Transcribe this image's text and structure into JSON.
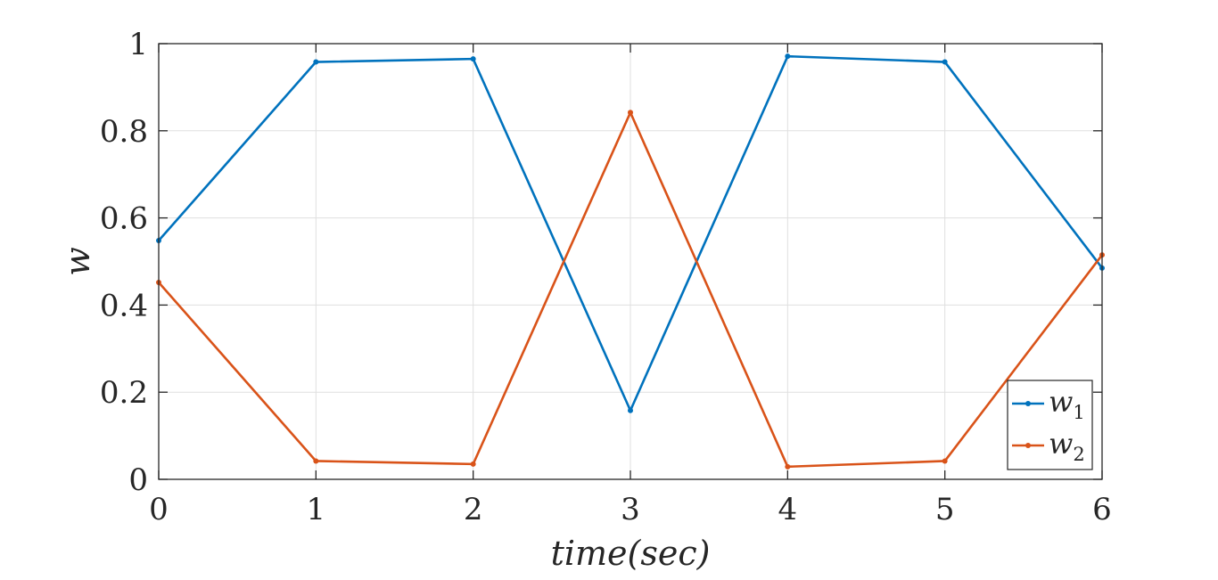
{
  "chart_data": {
    "type": "line",
    "title": "",
    "xlabel": "time(sec)",
    "ylabel": "w",
    "xlim": [
      0,
      6
    ],
    "ylim": [
      0,
      1
    ],
    "xticks": [
      0,
      1,
      2,
      3,
      4,
      5,
      6
    ],
    "yticks": [
      0,
      0.2,
      0.4,
      0.6,
      0.8,
      1
    ],
    "xtick_labels": [
      "0",
      "1",
      "2",
      "3",
      "4",
      "5",
      "6"
    ],
    "ytick_labels": [
      "0",
      "0.2",
      "0.4",
      "0.6",
      "0.8",
      "1"
    ],
    "grid": true,
    "legend_position": "bottom-right",
    "x": [
      0,
      1,
      2,
      3,
      4,
      5,
      6
    ],
    "series": [
      {
        "name": "w1",
        "label_base": "w",
        "label_sub": "1",
        "color": "#0072BD",
        "values": [
          0.548,
          0.958,
          0.965,
          0.158,
          0.971,
          0.958,
          0.485
        ]
      },
      {
        "name": "w2",
        "label_base": "w",
        "label_sub": "2",
        "color": "#D95319",
        "values": [
          0.452,
          0.042,
          0.035,
          0.842,
          0.029,
          0.042,
          0.515
        ]
      }
    ]
  }
}
